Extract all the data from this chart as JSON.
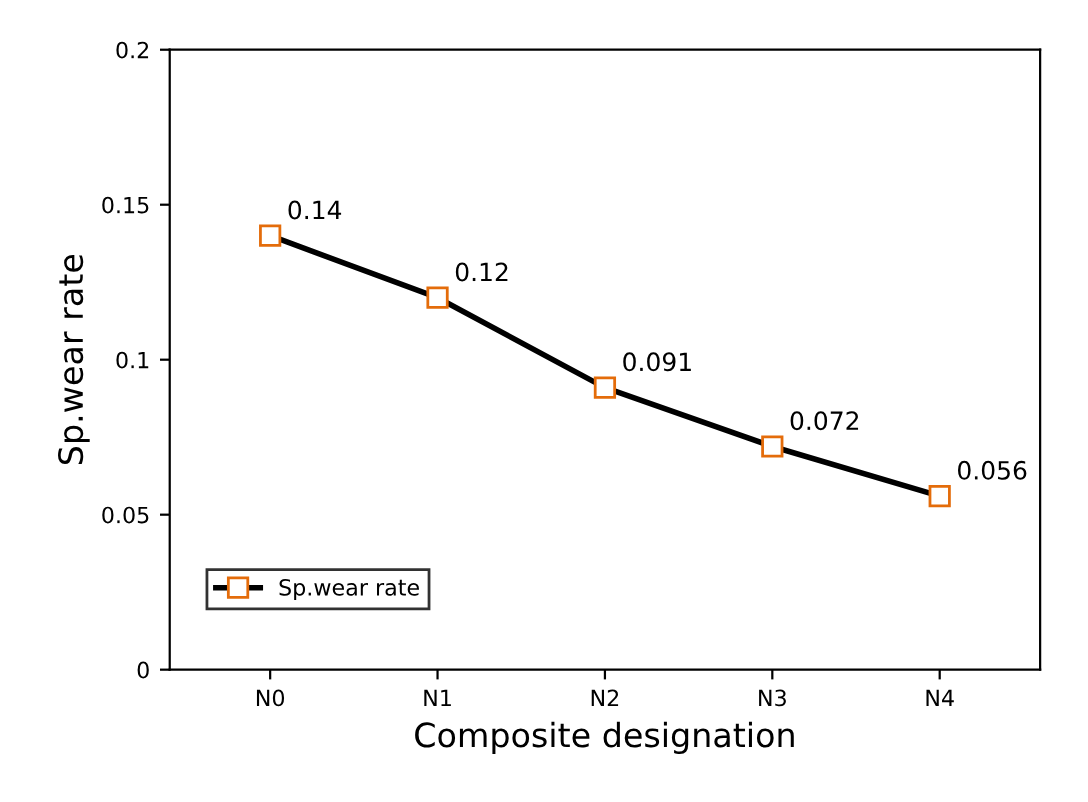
{
  "chart_data": {
    "type": "line",
    "xlabel": "Composite designation",
    "ylabel": "Sp.wear rate",
    "categories": [
      "N0",
      "N1",
      "N2",
      "N3",
      "N4"
    ],
    "series": [
      {
        "name": "Sp.wear rate",
        "color": "#e46c0a",
        "values": [
          0.14,
          0.12,
          0.091,
          0.072,
          0.056
        ]
      }
    ],
    "ylim": [
      0,
      0.2
    ],
    "yticks": [
      0,
      0.05,
      0.1,
      0.15,
      0.2
    ],
    "grid": false,
    "legend": "bottom left",
    "marker": "square",
    "line_style": "solid",
    "data_labels": true
  }
}
